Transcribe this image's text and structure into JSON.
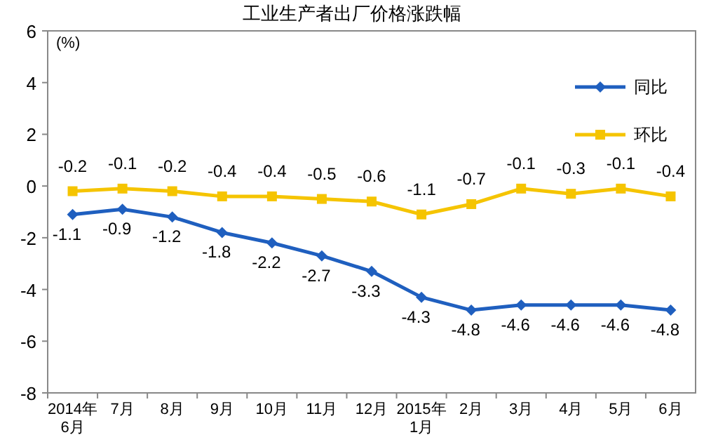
{
  "chart_data": {
    "type": "line",
    "title": "工业生产者出厂价格涨跌幅",
    "ylabel": "(%)",
    "categories": [
      "2014年\n6月",
      "7月",
      "8月",
      "9月",
      "10月",
      "11月",
      "12月",
      "2015年\n1月",
      "2月",
      "3月",
      "4月",
      "5月",
      "6月"
    ],
    "series": [
      {
        "name": "同比",
        "color": "#1f5fbf",
        "marker": "diamond",
        "values": [
          -1.1,
          -0.9,
          -1.2,
          -1.8,
          -2.2,
          -2.7,
          -3.3,
          -4.3,
          -4.8,
          -4.6,
          -4.6,
          -4.6,
          -4.8
        ]
      },
      {
        "name": "环比",
        "color": "#f5c400",
        "marker": "square",
        "values": [
          -0.2,
          -0.1,
          -0.2,
          -0.4,
          -0.4,
          -0.5,
          -0.6,
          -1.1,
          -0.7,
          -0.1,
          -0.3,
          -0.1,
          -0.4
        ]
      }
    ],
    "ylim": [
      -8,
      6
    ],
    "yticks": [
      -8,
      -6,
      -4,
      -2,
      0,
      2,
      4,
      6
    ],
    "grid": false,
    "legend": "top right",
    "data_labels": true,
    "line_style": "solid"
  }
}
